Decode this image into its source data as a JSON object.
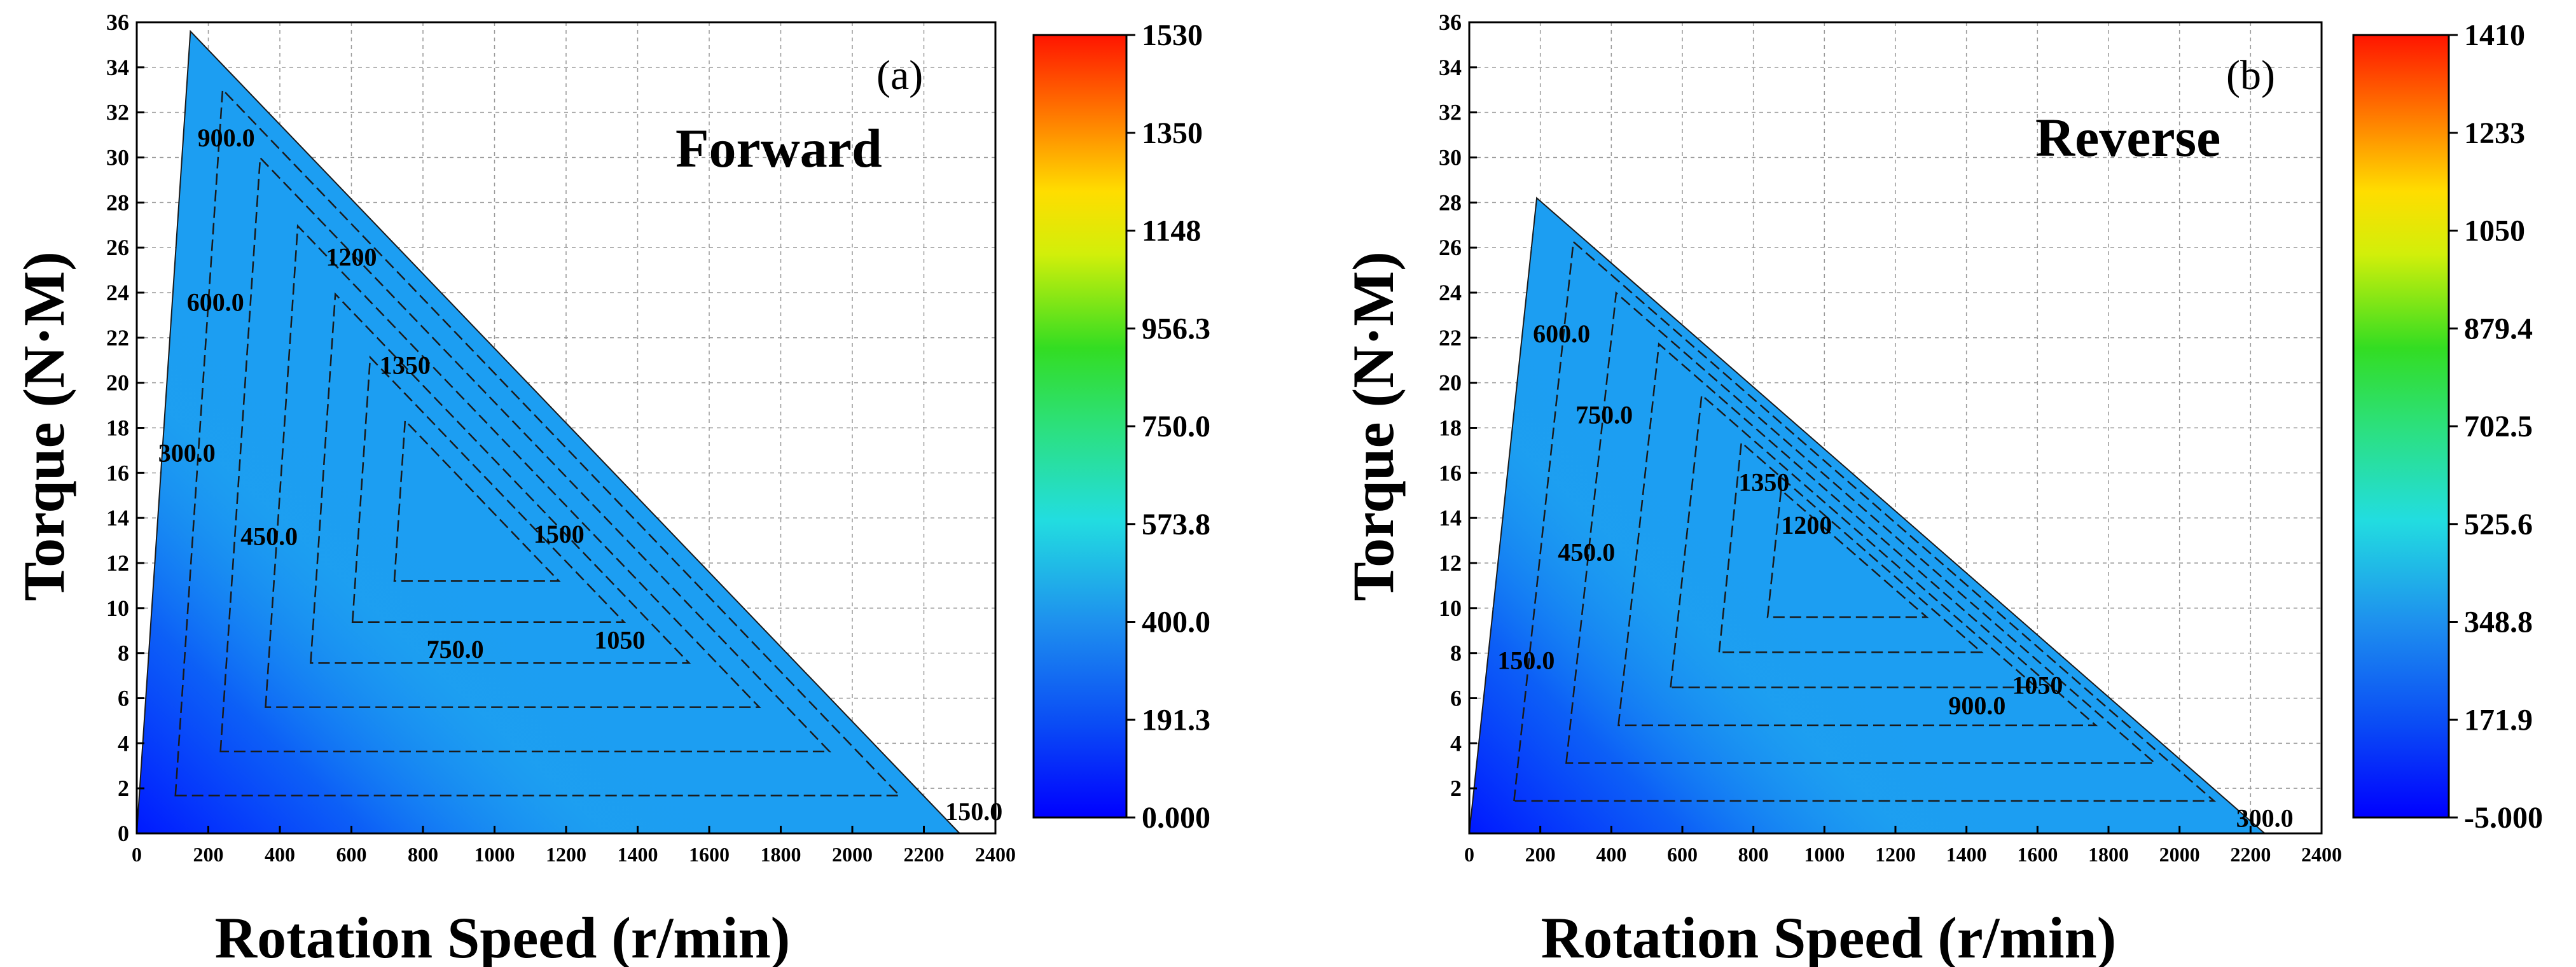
{
  "chart_data": [
    {
      "type": "heatmap",
      "panel": "(a)",
      "direction": "Forward",
      "xlabel": "Rotation Speed (r/min)",
      "ylabel": "Torque (N·M)",
      "xlim": [
        0,
        2400
      ],
      "ylim": [
        0,
        36
      ],
      "x_ticks": [
        "0",
        "200",
        "400",
        "600",
        "800",
        "1000",
        "1200",
        "1400",
        "1600",
        "1800",
        "2000",
        "2200",
        "2400"
      ],
      "y_ticks": [
        "0",
        "2",
        "4",
        "6",
        "8",
        "10",
        "12",
        "14",
        "16",
        "18",
        "20",
        "22",
        "24",
        "26",
        "28",
        "30",
        "32",
        "34",
        "36"
      ],
      "grid": true,
      "region": {
        "corner": [
          0,
          0
        ],
        "peak": [
          150,
          35.6
        ],
        "end": [
          2300,
          0
        ]
      },
      "colorbar": {
        "min": 0,
        "max": 1530,
        "ticks": [
          "1530",
          "1350",
          "1148",
          "956.3",
          "750.0",
          "573.8",
          "400.0",
          "191.3",
          "0.000"
        ]
      },
      "contour_labels": [
        {
          "text": "900.0",
          "x": 250,
          "y": 30.5
        },
        {
          "text": "1200",
          "x": 600,
          "y": 25.2
        },
        {
          "text": "600.0",
          "x": 220,
          "y": 23.2
        },
        {
          "text": "1350",
          "x": 750,
          "y": 20.4
        },
        {
          "text": "300.0",
          "x": 140,
          "y": 16.5
        },
        {
          "text": "1500",
          "x": 1180,
          "y": 12.9
        },
        {
          "text": "450.0",
          "x": 370,
          "y": 12.8
        },
        {
          "text": "750.0",
          "x": 890,
          "y": 7.8
        },
        {
          "text": "1050",
          "x": 1350,
          "y": 8.2
        },
        {
          "text": "150.0",
          "x": 2340,
          "y": 0.6
        }
      ]
    },
    {
      "type": "heatmap",
      "panel": "(b)",
      "direction": "Reverse",
      "xlabel": "Rotation Speed (r/min)",
      "ylabel": "Torque (N·M)",
      "xlim": [
        0,
        2400
      ],
      "ylim": [
        0,
        36
      ],
      "x_ticks": [
        "0",
        "200",
        "400",
        "600",
        "800",
        "1000",
        "1200",
        "1400",
        "1600",
        "1800",
        "2000",
        "2200",
        "2400"
      ],
      "y_ticks": [
        "2",
        "4",
        "6",
        "8",
        "10",
        "12",
        "14",
        "16",
        "18",
        "20",
        "22",
        "24",
        "26",
        "28",
        "30",
        "32",
        "34",
        "36"
      ],
      "grid": true,
      "region": {
        "corner": [
          0,
          0
        ],
        "peak": [
          190,
          28.2
        ],
        "end": [
          2240,
          0
        ]
      },
      "colorbar": {
        "min": -5,
        "max": 1410,
        "ticks": [
          "1410",
          "1233",
          "1050",
          "879.4",
          "702.5",
          "525.6",
          "348.8",
          "171.9",
          "-5.000"
        ]
      },
      "contour_labels": [
        {
          "text": "600.0",
          "x": 260,
          "y": 21.8
        },
        {
          "text": "750.0",
          "x": 380,
          "y": 18.2
        },
        {
          "text": "1350",
          "x": 830,
          "y": 15.2
        },
        {
          "text": "1200",
          "x": 950,
          "y": 13.3
        },
        {
          "text": "450.0",
          "x": 330,
          "y": 12.1
        },
        {
          "text": "150.0",
          "x": 160,
          "y": 7.3
        },
        {
          "text": "1050",
          "x": 1600,
          "y": 6.2
        },
        {
          "text": "900.0",
          "x": 1430,
          "y": 5.3
        },
        {
          "text": "300.0",
          "x": 2240,
          "y": 0.3
        }
      ]
    }
  ]
}
